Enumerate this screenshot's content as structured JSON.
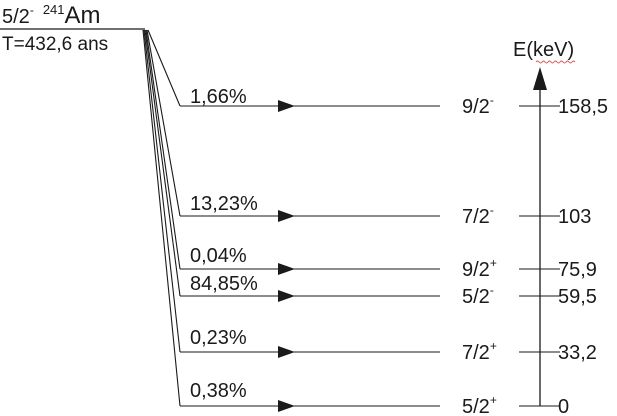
{
  "parent": {
    "spin": "5/2",
    "parity": "-",
    "mass_number": "241",
    "symbol": "Am",
    "half_life": "T=432,6 ans"
  },
  "energy_axis": {
    "label": "E(keV)"
  },
  "levels": [
    {
      "spin": "9/2",
      "parity": "-",
      "energy": "158,5",
      "intensity": "1,66%"
    },
    {
      "spin": "7/2",
      "parity": "-",
      "energy": "103",
      "intensity": "13,23%"
    },
    {
      "spin": "9/2",
      "parity": "+",
      "energy": "75,9",
      "intensity": "0,04%"
    },
    {
      "spin": "5/2",
      "parity": "-",
      "energy": "59,5",
      "intensity": "84,85%"
    },
    {
      "spin": "7/2",
      "parity": "+",
      "energy": "33,2",
      "intensity": "0,23%"
    },
    {
      "spin": "5/2",
      "parity": "+",
      "energy": "0",
      "intensity": "0,38%"
    }
  ]
}
